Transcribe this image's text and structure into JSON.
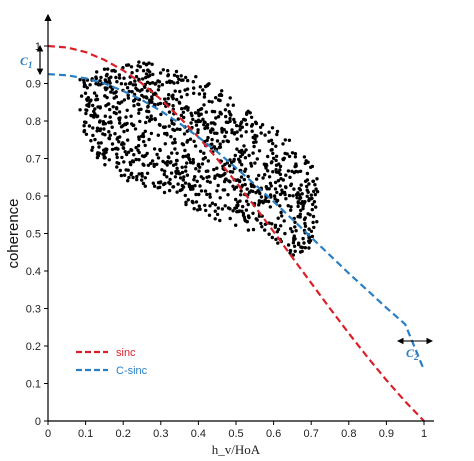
{
  "chart_data": {
    "type": "scatter",
    "title": "",
    "xlabel": "h_v/HoA",
    "ylabel": "coherence",
    "xlim": [
      0,
      1.05
    ],
    "ylim": [
      0,
      1.05
    ],
    "x_ticks": [
      "0",
      "0.1",
      "0.2",
      "0.3",
      "0.4",
      "0.5",
      "0.6",
      "0.7",
      "0.8",
      "0.9",
      "1"
    ],
    "y_ticks": [
      "0",
      "0.1",
      "0.2",
      "0.3",
      "0.4",
      "0.5",
      "0.6",
      "0.7",
      "0.8",
      "0.9",
      "1"
    ],
    "grid": false,
    "legend_position": "bottom-left",
    "series": [
      {
        "name": "sinc",
        "kind": "dashed-line",
        "color": "#d9202a",
        "x": [
          0,
          0.05,
          0.1,
          0.15,
          0.2,
          0.25,
          0.3,
          0.35,
          0.4,
          0.45,
          0.5,
          0.55,
          0.6,
          0.65,
          0.7,
          0.75,
          0.8,
          0.85,
          0.9,
          0.95,
          1.0
        ],
        "y": [
          1.0,
          0.996,
          0.984,
          0.963,
          0.935,
          0.9,
          0.858,
          0.81,
          0.757,
          0.699,
          0.637,
          0.572,
          0.505,
          0.436,
          0.368,
          0.3,
          0.234,
          0.17,
          0.109,
          0.052,
          0.0
        ]
      },
      {
        "name": "C-sinc",
        "kind": "dashed-line",
        "color": "#2a7fc4",
        "x": [
          0,
          0.05,
          0.1,
          0.15,
          0.2,
          0.25,
          0.3,
          0.35,
          0.4,
          0.45,
          0.5,
          0.55,
          0.6,
          0.65,
          0.7,
          0.75,
          0.8,
          0.85,
          0.9,
          0.95,
          1.0
        ],
        "y": [
          0.925,
          0.922,
          0.914,
          0.9,
          0.88,
          0.856,
          0.827,
          0.794,
          0.757,
          0.718,
          0.675,
          0.631,
          0.585,
          0.538,
          0.49,
          0.442,
          0.394,
          0.348,
          0.302,
          0.258,
          0.136
        ]
      },
      {
        "name": "",
        "kind": "scatter",
        "color": "#000000",
        "region": {
          "x_range": [
            0.08,
            0.72
          ],
          "y_top": [
            [
              0.08,
              0.92
            ],
            [
              0.15,
              0.94
            ],
            [
              0.25,
              0.96
            ],
            [
              0.35,
              0.94
            ],
            [
              0.45,
              0.89
            ],
            [
              0.55,
              0.82
            ],
            [
              0.62,
              0.77
            ],
            [
              0.68,
              0.72
            ],
            [
              0.72,
              0.65
            ]
          ],
          "y_bottom": [
            [
              0.08,
              0.81
            ],
            [
              0.12,
              0.71
            ],
            [
              0.2,
              0.64
            ],
            [
              0.3,
              0.61
            ],
            [
              0.4,
              0.56
            ],
            [
              0.5,
              0.51
            ],
            [
              0.58,
              0.5
            ],
            [
              0.65,
              0.44
            ],
            [
              0.7,
              0.46
            ],
            [
              0.72,
              0.55
            ]
          ],
          "count": 1100
        }
      }
    ],
    "annotations": [
      {
        "label": "C",
        "sub": "1",
        "x": 0.0,
        "y": 0.96,
        "color": "#2a7fc4",
        "arrow": "vertical",
        "range": [
          0.925,
          1.0
        ]
      },
      {
        "label": "C",
        "sub": "2",
        "x": 0.98,
        "y": 0.18,
        "color": "#2a7fc4",
        "arrow": "horizontal"
      }
    ]
  }
}
